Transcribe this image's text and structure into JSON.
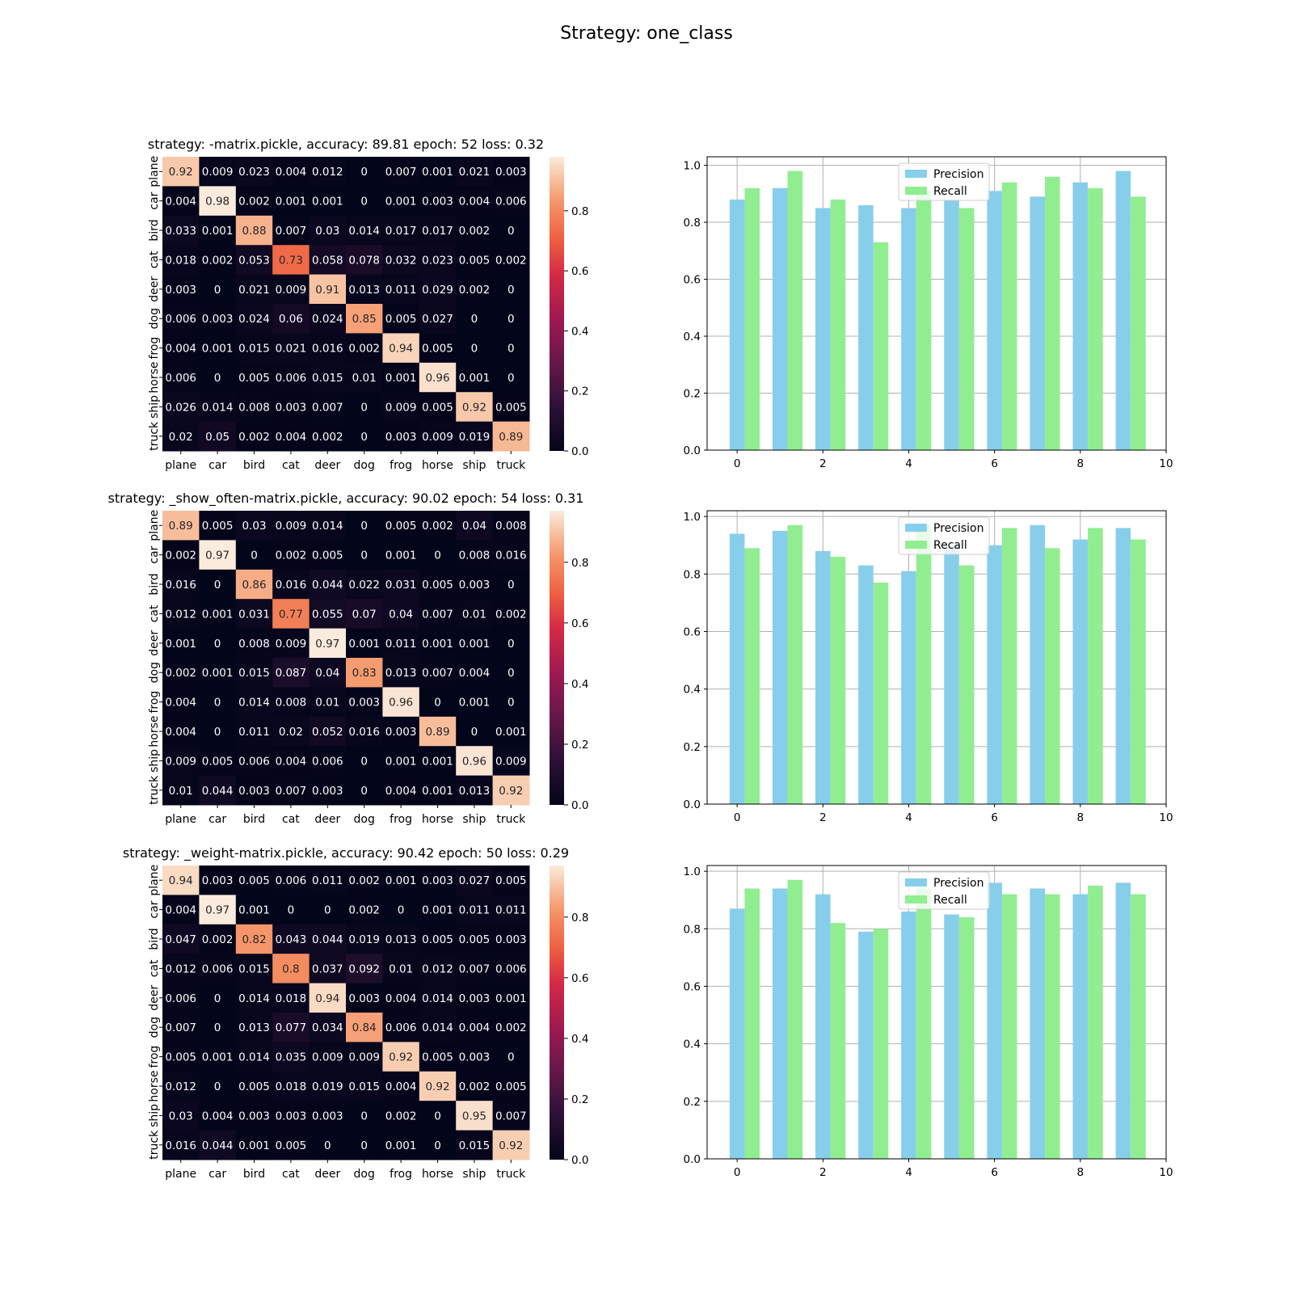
{
  "figure": {
    "suptitle": "Strategy: one_class"
  },
  "class_labels": [
    "plane",
    "car",
    "bird",
    "cat",
    "deer",
    "dog",
    "frog",
    "horse",
    "ship",
    "truck"
  ],
  "colorbar_ticks": [
    "0.0",
    "0.2",
    "0.4",
    "0.6",
    "0.8"
  ],
  "bar_colors": {
    "precision": "#87ceeb",
    "recall": "#90ee90"
  },
  "chart_data": [
    {
      "type": "heatmap",
      "title": "strategy: -matrix.pickle, accuracy: 89.81 epoch: 52 loss: 0.32",
      "categories": [
        "plane",
        "car",
        "bird",
        "cat",
        "deer",
        "dog",
        "frog",
        "horse",
        "ship",
        "truck"
      ],
      "colormap": "rocket",
      "vmin": 0,
      "vmax": 0.98,
      "matrix": [
        [
          0.92,
          0.009,
          0.023,
          0.004,
          0.012,
          0,
          0.007,
          0.001,
          0.021,
          0.003
        ],
        [
          0.004,
          0.98,
          0.002,
          0.001,
          0.001,
          0,
          0.001,
          0.003,
          0.004,
          0.006
        ],
        [
          0.033,
          0.001,
          0.88,
          0.007,
          0.03,
          0.014,
          0.017,
          0.017,
          0.002,
          0
        ],
        [
          0.018,
          0.002,
          0.053,
          0.73,
          0.058,
          0.078,
          0.032,
          0.023,
          0.005,
          0.002
        ],
        [
          0.003,
          0,
          0.021,
          0.009,
          0.91,
          0.013,
          0.011,
          0.029,
          0.002,
          0
        ],
        [
          0.006,
          0.003,
          0.024,
          0.06,
          0.024,
          0.85,
          0.005,
          0.027,
          0,
          0
        ],
        [
          0.004,
          0.001,
          0.015,
          0.021,
          0.016,
          0.002,
          0.94,
          0.005,
          0,
          0
        ],
        [
          0.006,
          0,
          0.005,
          0.006,
          0.015,
          0.01,
          0.001,
          0.96,
          0.001,
          0
        ],
        [
          0.026,
          0.014,
          0.008,
          0.003,
          0.007,
          0,
          0.009,
          0.005,
          0.92,
          0.005
        ],
        [
          0.02,
          0.05,
          0.002,
          0.004,
          0.002,
          0,
          0.003,
          0.009,
          0.019,
          0.89
        ]
      ]
    },
    {
      "type": "bar",
      "x": [
        0,
        1,
        2,
        3,
        4,
        5,
        6,
        7,
        8,
        9
      ],
      "series": [
        {
          "name": "Precision",
          "values": [
            0.88,
            0.92,
            0.85,
            0.86,
            0.85,
            0.88,
            0.91,
            0.89,
            0.94,
            0.98
          ]
        },
        {
          "name": "Recall",
          "values": [
            0.92,
            0.98,
            0.88,
            0.73,
            0.91,
            0.85,
            0.94,
            0.96,
            0.92,
            0.89
          ]
        }
      ],
      "xlim": [
        -0.7,
        10
      ],
      "ylim": [
        0,
        1.03
      ],
      "xticks": [
        0,
        2,
        4,
        6,
        8,
        10
      ],
      "yticks": [
        0.0,
        0.2,
        0.4,
        0.6,
        0.8,
        1.0
      ],
      "grid": true,
      "legend": "upper center"
    },
    {
      "type": "heatmap",
      "title": "strategy: _show_often-matrix.pickle, accuracy: 90.02 epoch: 54 loss: 0.31",
      "categories": [
        "plane",
        "car",
        "bird",
        "cat",
        "deer",
        "dog",
        "frog",
        "horse",
        "ship",
        "truck"
      ],
      "colormap": "rocket",
      "vmin": 0,
      "vmax": 0.97,
      "matrix": [
        [
          0.89,
          0.005,
          0.03,
          0.009,
          0.014,
          0,
          0.005,
          0.002,
          0.04,
          0.008
        ],
        [
          0.002,
          0.97,
          0,
          0.002,
          0.005,
          0,
          0.001,
          0,
          0.008,
          0.016
        ],
        [
          0.016,
          0,
          0.86,
          0.016,
          0.044,
          0.022,
          0.031,
          0.005,
          0.003,
          0
        ],
        [
          0.012,
          0.001,
          0.031,
          0.77,
          0.055,
          0.07,
          0.04,
          0.007,
          0.01,
          0.002
        ],
        [
          0.001,
          0,
          0.008,
          0.009,
          0.97,
          0.001,
          0.011,
          0.001,
          0.001,
          0
        ],
        [
          0.002,
          0.001,
          0.015,
          0.087,
          0.04,
          0.83,
          0.013,
          0.007,
          0.004,
          0
        ],
        [
          0.004,
          0,
          0.014,
          0.008,
          0.01,
          0.003,
          0.96,
          0,
          0.001,
          0
        ],
        [
          0.004,
          0,
          0.011,
          0.02,
          0.052,
          0.016,
          0.003,
          0.89,
          0,
          0.001
        ],
        [
          0.009,
          0.005,
          0.006,
          0.004,
          0.006,
          0,
          0.001,
          0.001,
          0.96,
          0.009
        ],
        [
          0.01,
          0.044,
          0.003,
          0.007,
          0.003,
          0,
          0.004,
          0.001,
          0.013,
          0.92
        ]
      ]
    },
    {
      "type": "bar",
      "x": [
        0,
        1,
        2,
        3,
        4,
        5,
        6,
        7,
        8,
        9
      ],
      "series": [
        {
          "name": "Precision",
          "values": [
            0.94,
            0.95,
            0.88,
            0.83,
            0.81,
            0.9,
            0.9,
            0.97,
            0.92,
            0.96
          ]
        },
        {
          "name": "Recall",
          "values": [
            0.89,
            0.97,
            0.86,
            0.77,
            0.97,
            0.83,
            0.96,
            0.89,
            0.96,
            0.92
          ]
        }
      ],
      "xlim": [
        -0.7,
        10
      ],
      "ylim": [
        0,
        1.02
      ],
      "xticks": [
        0,
        2,
        4,
        6,
        8,
        10
      ],
      "yticks": [
        0.0,
        0.2,
        0.4,
        0.6,
        0.8,
        1.0
      ],
      "grid": true,
      "legend": "upper center"
    },
    {
      "type": "heatmap",
      "title": "strategy: _weight-matrix.pickle, accuracy: 90.42 epoch: 50 loss: 0.29",
      "categories": [
        "plane",
        "car",
        "bird",
        "cat",
        "deer",
        "dog",
        "frog",
        "horse",
        "ship",
        "truck"
      ],
      "colormap": "rocket",
      "vmin": 0,
      "vmax": 0.97,
      "matrix": [
        [
          0.94,
          0.003,
          0.005,
          0.006,
          0.011,
          0.002,
          0.001,
          0.003,
          0.027,
          0.005
        ],
        [
          0.004,
          0.97,
          0.001,
          0,
          0,
          0.002,
          0,
          0.001,
          0.011,
          0.011
        ],
        [
          0.047,
          0.002,
          0.82,
          0.043,
          0.044,
          0.019,
          0.013,
          0.005,
          0.005,
          0.003
        ],
        [
          0.012,
          0.006,
          0.015,
          0.8,
          0.037,
          0.092,
          0.01,
          0.012,
          0.007,
          0.006
        ],
        [
          0.006,
          0,
          0.014,
          0.018,
          0.94,
          0.003,
          0.004,
          0.014,
          0.003,
          0.001
        ],
        [
          0.007,
          0,
          0.013,
          0.077,
          0.034,
          0.84,
          0.006,
          0.014,
          0.004,
          0.002
        ],
        [
          0.005,
          0.001,
          0.014,
          0.035,
          0.009,
          0.009,
          0.92,
          0.005,
          0.003,
          0
        ],
        [
          0.012,
          0,
          0.005,
          0.018,
          0.019,
          0.015,
          0.004,
          0.92,
          0.002,
          0.005
        ],
        [
          0.03,
          0.004,
          0.003,
          0.003,
          0.003,
          0,
          0.002,
          0,
          0.95,
          0.007
        ],
        [
          0.016,
          0.044,
          0.001,
          0.005,
          0,
          0,
          0.001,
          0,
          0.015,
          0.92
        ]
      ]
    },
    {
      "type": "bar",
      "x": [
        0,
        1,
        2,
        3,
        4,
        5,
        6,
        7,
        8,
        9
      ],
      "series": [
        {
          "name": "Precision",
          "values": [
            0.87,
            0.94,
            0.92,
            0.79,
            0.86,
            0.85,
            0.96,
            0.94,
            0.92,
            0.96
          ]
        },
        {
          "name": "Recall",
          "values": [
            0.94,
            0.97,
            0.82,
            0.8,
            0.94,
            0.84,
            0.92,
            0.92,
            0.95,
            0.92
          ]
        }
      ],
      "xlim": [
        -0.7,
        10
      ],
      "ylim": [
        0,
        1.02
      ],
      "xticks": [
        0,
        2,
        4,
        6,
        8,
        10
      ],
      "yticks": [
        0.0,
        0.2,
        0.4,
        0.6,
        0.8,
        1.0
      ],
      "grid": true,
      "legend": "upper center"
    }
  ]
}
